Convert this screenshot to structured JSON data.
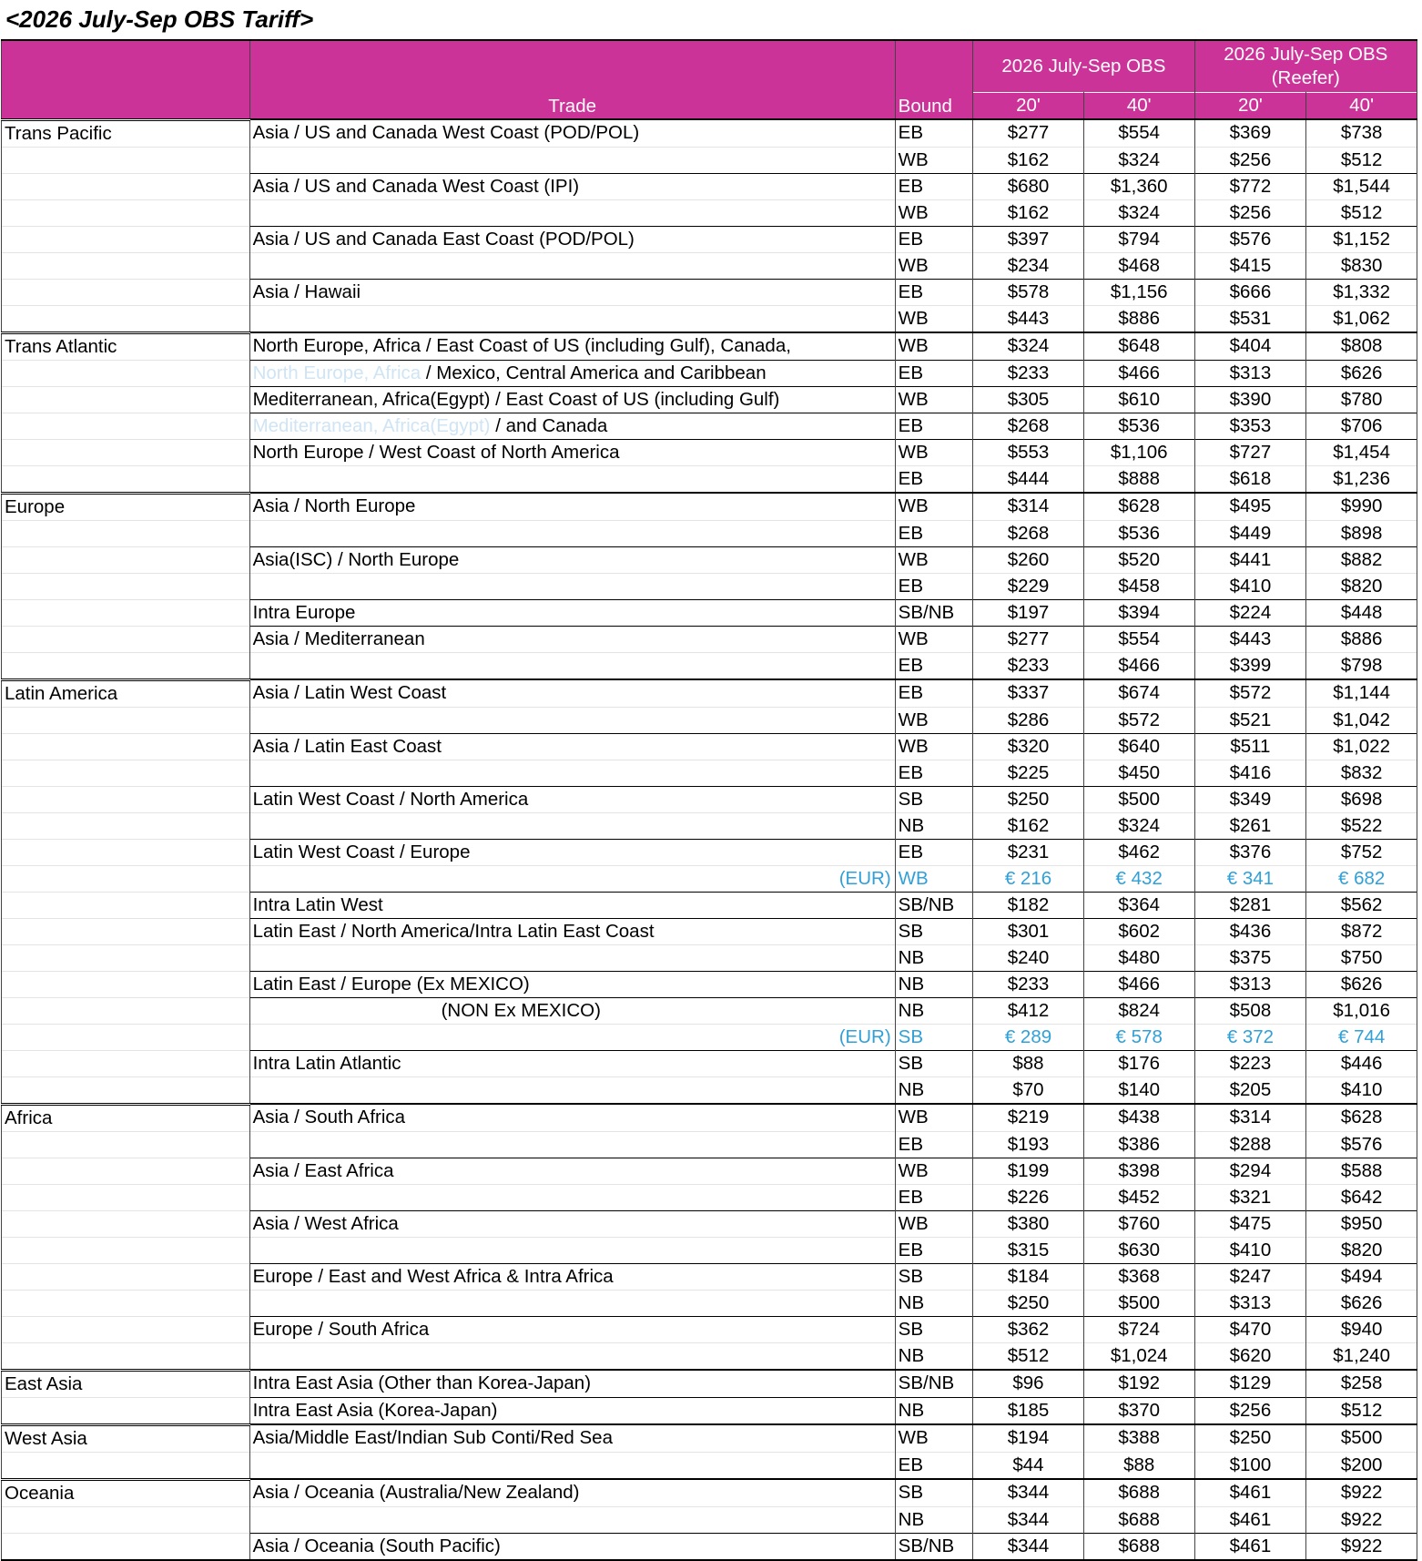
{
  "title": "<2026 July-Sep OBS Tariff>",
  "header": {
    "trade": "Trade",
    "bound": "Bound",
    "group1": "2026 July-Sep OBS",
    "group2": "2026 July-Sep OBS (Reefer)",
    "c20": "20'",
    "c40": "40'"
  },
  "rows": [
    {
      "region": "Trans Pacific",
      "trade": "Asia / US and Canada West Coast (POD/POL)",
      "bound": "EB",
      "v": [
        "$277",
        "$554",
        "$369",
        "$738"
      ]
    },
    {
      "region": "",
      "trade": "",
      "bound": "WB",
      "v": [
        "$162",
        "$324",
        "$256",
        "$512"
      ]
    },
    {
      "region": "",
      "trade": "Asia / US and Canada West Coast (IPI)",
      "bound": "EB",
      "v": [
        "$680",
        "$1,360",
        "$772",
        "$1,544"
      ]
    },
    {
      "region": "",
      "trade": "",
      "bound": "WB",
      "v": [
        "$162",
        "$324",
        "$256",
        "$512"
      ]
    },
    {
      "region": "",
      "trade": "Asia / US and Canada East Coast (POD/POL)",
      "bound": "EB",
      "v": [
        "$397",
        "$794",
        "$576",
        "$1,152"
      ]
    },
    {
      "region": "",
      "trade": "",
      "bound": "WB",
      "v": [
        "$234",
        "$468",
        "$415",
        "$830"
      ]
    },
    {
      "region": "",
      "trade": "Asia / Hawaii",
      "bound": "EB",
      "v": [
        "$578",
        "$1,156",
        "$666",
        "$1,332"
      ]
    },
    {
      "region": "",
      "trade": "",
      "bound": "WB",
      "v": [
        "$443",
        "$886",
        "$531",
        "$1,062"
      ]
    },
    {
      "region": "Trans Atlantic",
      "trade": "North Europe, Africa / East Coast of US (including Gulf), Canada,",
      "bound": "WB",
      "v": [
        "$324",
        "$648",
        "$404",
        "$808"
      ]
    },
    {
      "region": "",
      "trade_faded": "North Europe, Africa",
      "trade": "/ Mexico, Central America and Caribbean",
      "bound": "EB",
      "v": [
        "$233",
        "$466",
        "$313",
        "$626"
      ]
    },
    {
      "region": "",
      "trade": "Mediterranean, Africa(Egypt) / East Coast of US (including Gulf)",
      "bound": "WB",
      "v": [
        "$305",
        "$610",
        "$390",
        "$780"
      ]
    },
    {
      "region": "",
      "trade_faded": "Mediterranean, Africa(Egypt)",
      "trade": "/ and Canada",
      "bound": "EB",
      "v": [
        "$268",
        "$536",
        "$353",
        "$706"
      ]
    },
    {
      "region": "",
      "trade": "North Europe / West Coast of North America",
      "bound": "WB",
      "v": [
        "$553",
        "$1,106",
        "$727",
        "$1,454"
      ]
    },
    {
      "region": "",
      "trade": "",
      "bound": "EB",
      "v": [
        "$444",
        "$888",
        "$618",
        "$1,236"
      ]
    },
    {
      "region": "Europe",
      "trade": "Asia / North Europe",
      "bound": "WB",
      "v": [
        "$314",
        "$628",
        "$495",
        "$990"
      ]
    },
    {
      "region": "",
      "trade": "",
      "bound": "EB",
      "v": [
        "$268",
        "$536",
        "$449",
        "$898"
      ]
    },
    {
      "region": "",
      "trade": "Asia(ISC) / North Europe",
      "bound": "WB",
      "v": [
        "$260",
        "$520",
        "$441",
        "$882"
      ]
    },
    {
      "region": "",
      "trade": "",
      "bound": "EB",
      "v": [
        "$229",
        "$458",
        "$410",
        "$820"
      ]
    },
    {
      "region": "",
      "trade": "Intra Europe",
      "bound": "SB/NB",
      "v": [
        "$197",
        "$394",
        "$224",
        "$448"
      ]
    },
    {
      "region": "",
      "trade": "Asia / Mediterranean",
      "bound": "WB",
      "v": [
        "$277",
        "$554",
        "$443",
        "$886"
      ]
    },
    {
      "region": "",
      "trade": "",
      "bound": "EB",
      "v": [
        "$233",
        "$466",
        "$399",
        "$798"
      ]
    },
    {
      "region": "Latin America",
      "trade": "Asia / Latin West Coast",
      "bound": "EB",
      "v": [
        "$337",
        "$674",
        "$572",
        "$1,144"
      ]
    },
    {
      "region": "",
      "trade": "",
      "bound": "WB",
      "v": [
        "$286",
        "$572",
        "$521",
        "$1,042"
      ]
    },
    {
      "region": "",
      "trade": "Asia / Latin East Coast",
      "bound": "WB",
      "v": [
        "$320",
        "$640",
        "$511",
        "$1,022"
      ]
    },
    {
      "region": "",
      "trade": "",
      "bound": "EB",
      "v": [
        "$225",
        "$450",
        "$416",
        "$832"
      ]
    },
    {
      "region": "",
      "trade": "Latin West Coast / North America",
      "bound": "SB",
      "v": [
        "$250",
        "$500",
        "$349",
        "$698"
      ]
    },
    {
      "region": "",
      "trade": "",
      "bound": "NB",
      "v": [
        "$162",
        "$324",
        "$261",
        "$522"
      ]
    },
    {
      "region": "",
      "trade": "Latin West Coast / Europe",
      "bound": "EB",
      "v": [
        "$231",
        "$462",
        "$376",
        "$752"
      ]
    },
    {
      "region": "",
      "trade": "",
      "eur": "(EUR)",
      "bound": "WB",
      "v": [
        "€ 216",
        "€ 432",
        "€ 341",
        "€ 682"
      ]
    },
    {
      "region": "",
      "trade": "Intra Latin West",
      "bound": "SB/NB",
      "v": [
        "$182",
        "$364",
        "$281",
        "$562"
      ]
    },
    {
      "region": "",
      "trade": "Latin East / North America/Intra Latin East Coast",
      "bound": "SB",
      "v": [
        "$301",
        "$602",
        "$436",
        "$872"
      ]
    },
    {
      "region": "",
      "trade": "",
      "bound": "NB",
      "v": [
        "$240",
        "$480",
        "$375",
        "$750"
      ]
    },
    {
      "region": "",
      "trade": "Latin East / Europe  (Ex MEXICO)",
      "bound": "NB",
      "v": [
        "$233",
        "$466",
        "$313",
        "$626"
      ]
    },
    {
      "region": "",
      "trade_indent": "(NON Ex MEXICO)",
      "trade": "",
      "bound": "NB",
      "v": [
        "$412",
        "$824",
        "$508",
        "$1,016"
      ]
    },
    {
      "region": "",
      "trade": "",
      "eur": "(EUR)",
      "bound": "SB",
      "v": [
        "€ 289",
        "€ 578",
        "€ 372",
        "€ 744"
      ]
    },
    {
      "region": "",
      "trade": "Intra Latin Atlantic",
      "bound": "SB",
      "v": [
        "$88",
        "$176",
        "$223",
        "$446"
      ]
    },
    {
      "region": "",
      "trade": "",
      "bound": "NB",
      "v": [
        "$70",
        "$140",
        "$205",
        "$410"
      ]
    },
    {
      "region": "Africa",
      "trade": "Asia / South Africa",
      "bound": "WB",
      "v": [
        "$219",
        "$438",
        "$314",
        "$628"
      ]
    },
    {
      "region": "",
      "trade": "",
      "bound": "EB",
      "v": [
        "$193",
        "$386",
        "$288",
        "$576"
      ]
    },
    {
      "region": "",
      "trade": "Asia / East Africa",
      "bound": "WB",
      "v": [
        "$199",
        "$398",
        "$294",
        "$588"
      ]
    },
    {
      "region": "",
      "trade": "",
      "bound": "EB",
      "v": [
        "$226",
        "$452",
        "$321",
        "$642"
      ]
    },
    {
      "region": "",
      "trade": "Asia / West Africa",
      "bound": "WB",
      "v": [
        "$380",
        "$760",
        "$475",
        "$950"
      ]
    },
    {
      "region": "",
      "trade": "",
      "bound": "EB",
      "v": [
        "$315",
        "$630",
        "$410",
        "$820"
      ]
    },
    {
      "region": "",
      "trade": "Europe / East and West Africa & Intra Africa",
      "bound": "SB",
      "v": [
        "$184",
        "$368",
        "$247",
        "$494"
      ]
    },
    {
      "region": "",
      "trade": "",
      "bound": "NB",
      "v": [
        "$250",
        "$500",
        "$313",
        "$626"
      ]
    },
    {
      "region": "",
      "trade": "Europe / South Africa",
      "bound": "SB",
      "v": [
        "$362",
        "$724",
        "$470",
        "$940"
      ]
    },
    {
      "region": "",
      "trade": "",
      "bound": "NB",
      "v": [
        "$512",
        "$1,024",
        "$620",
        "$1,240"
      ]
    },
    {
      "region": "East Asia",
      "trade": "Intra East Asia (Other than Korea-Japan)",
      "bound": "SB/NB",
      "v": [
        "$96",
        "$192",
        "$129",
        "$258"
      ]
    },
    {
      "region": "",
      "trade": "Intra East Asia (Korea-Japan)",
      "bound": "NB",
      "v": [
        "$185",
        "$370",
        "$256",
        "$512"
      ]
    },
    {
      "region": "West Asia",
      "trade": "Asia/Middle East/Indian Sub Conti/Red Sea",
      "bound": "WB",
      "v": [
        "$194",
        "$388",
        "$250",
        "$500"
      ]
    },
    {
      "region": "",
      "trade": "",
      "bound": "EB",
      "v": [
        "$44",
        "$88",
        "$100",
        "$200"
      ]
    },
    {
      "region": "Oceania",
      "trade": "Asia / Oceania (Australia/New Zealand)",
      "bound": "SB",
      "v": [
        "$344",
        "$688",
        "$461",
        "$922"
      ]
    },
    {
      "region": "",
      "trade": "",
      "bound": "NB",
      "v": [
        "$344",
        "$688",
        "$461",
        "$922"
      ]
    },
    {
      "region": "",
      "trade": "Asia / Oceania (South Pacific)",
      "bound": "SB/NB",
      "v": [
        "$344",
        "$688",
        "$461",
        "$922"
      ]
    }
  ],
  "colors": {
    "header_bg": "#cc3399",
    "eur_text": "#2fa0d8"
  }
}
